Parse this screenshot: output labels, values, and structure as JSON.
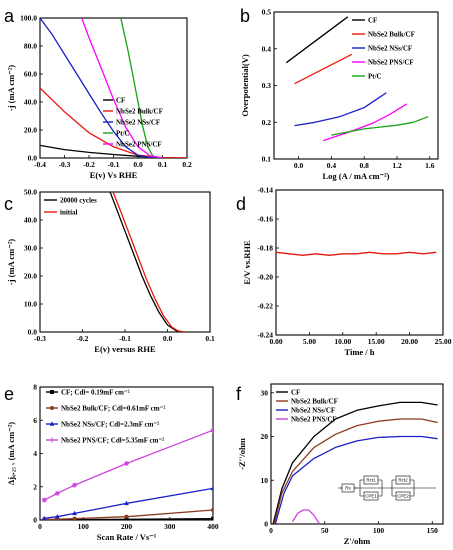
{
  "chart_data": [
    {
      "id": "a",
      "type": "line",
      "letter": "a",
      "xlabel": "E(v)  Vs RHE",
      "ylabel": "-j (mA cm⁻²)",
      "xlim": [
        -0.4,
        0.2
      ],
      "ylim": [
        100,
        0
      ],
      "y_inverted": true,
      "xticks": [
        -0.4,
        -0.3,
        -0.2,
        -0.1,
        0.0,
        0.1,
        0.2
      ],
      "yticks": [
        0,
        20,
        40,
        60,
        80,
        100
      ],
      "legend": "bottom-right",
      "series": [
        {
          "name": "CF",
          "color": "#000000",
          "x": [
            -0.4,
            -0.3,
            -0.2,
            -0.1,
            0.0,
            0.1,
            0.2
          ],
          "y": [
            9,
            6,
            4,
            2.5,
            1.2,
            0.3,
            0
          ]
        },
        {
          "name": "NbSe2 Bulk/CF",
          "color": "#e8190c",
          "x": [
            -0.4,
            -0.3,
            -0.2,
            -0.1,
            0.0,
            0.1,
            0.2
          ],
          "y": [
            50,
            33,
            18,
            8,
            2,
            0.3,
            0
          ]
        },
        {
          "name": "NbSe2 NSs/CF",
          "color": "#1a21c6",
          "x": [
            -0.4,
            -0.35,
            -0.3,
            -0.25,
            -0.2,
            -0.15,
            -0.1,
            -0.05,
            0.0,
            0.05,
            0.1
          ],
          "y": [
            100,
            88,
            74,
            60,
            46,
            32,
            19,
            8,
            2,
            0.3,
            0
          ]
        },
        {
          "name": "Pt/C",
          "color": "#19a319",
          "x": [
            -0.07,
            -0.06,
            -0.04,
            -0.02,
            0.0,
            0.02,
            0.04,
            0.06,
            0.1
          ],
          "y": [
            100,
            92,
            76,
            58,
            40,
            22,
            8,
            1.5,
            0
          ]
        },
        {
          "name": "NbSe2 PNS/CF",
          "color": "#ff00ff",
          "x": [
            -0.23,
            -0.2,
            -0.15,
            -0.1,
            -0.05,
            0.0,
            0.05,
            0.1
          ],
          "y": [
            100,
            86,
            64,
            42,
            22,
            8,
            1.5,
            0
          ]
        }
      ]
    },
    {
      "id": "b",
      "type": "line",
      "letter": "b",
      "xlabel": "Log (A / mA cm⁻²)",
      "ylabel": "Overpotential(V)",
      "xlim": [
        -0.3,
        1.7
      ],
      "ylim": [
        0.1,
        0.5
      ],
      "xticks": [
        0.0,
        0.4,
        0.8,
        1.2,
        1.6
      ],
      "yticks": [
        0.1,
        0.2,
        0.3,
        0.4,
        0.5
      ],
      "legend": "top-right",
      "series": [
        {
          "name": "CF",
          "color": "#000000",
          "x": [
            -0.15,
            0.6
          ],
          "y": [
            0.362,
            0.487
          ]
        },
        {
          "name": "NbSe2 Bulk/CF",
          "color": "#e8190c",
          "x": [
            -0.05,
            0.65
          ],
          "y": [
            0.305,
            0.385
          ]
        },
        {
          "name": "NbSe2 NSs/CF",
          "color": "#1a21c6",
          "x": [
            -0.05,
            0.2,
            0.5,
            0.8,
            1.07
          ],
          "y": [
            0.191,
            0.2,
            0.215,
            0.24,
            0.28
          ]
        },
        {
          "name": "NbSe2 PNS/CF",
          "color": "#ff00ff",
          "x": [
            0.3,
            0.6,
            0.9,
            1.1,
            1.32
          ],
          "y": [
            0.15,
            0.172,
            0.197,
            0.22,
            0.25
          ]
        },
        {
          "name": "Pt/C",
          "color": "#19a319",
          "x": [
            0.4,
            0.8,
            1.2,
            1.4,
            1.58
          ],
          "y": [
            0.165,
            0.182,
            0.192,
            0.2,
            0.215
          ]
        }
      ]
    },
    {
      "id": "c",
      "type": "line",
      "letter": "c",
      "xlabel": "E(v) versus RHE",
      "ylabel": "-j (mA cm⁻²)",
      "xlim": [
        -0.3,
        0.1
      ],
      "ylim": [
        50,
        0
      ],
      "y_inverted": true,
      "xticks": [
        -0.3,
        -0.2,
        -0.1,
        0.0,
        0.1
      ],
      "yticks": [
        0,
        10,
        20,
        30,
        40,
        50
      ],
      "legend": "top-left",
      "series": [
        {
          "name": "20000 cycles",
          "color": "#000000",
          "x": [
            -0.135,
            -0.12,
            -0.1,
            -0.08,
            -0.06,
            -0.04,
            -0.02,
            0.0,
            0.02,
            0.035
          ],
          "y": [
            50,
            44,
            36,
            28,
            20,
            13,
            7,
            2.5,
            0.5,
            0
          ]
        },
        {
          "name": "initial",
          "color": "#e8190c",
          "x": [
            -0.128,
            -0.11,
            -0.09,
            -0.07,
            -0.05,
            -0.03,
            -0.01,
            0.01,
            0.025,
            0.04
          ],
          "y": [
            50,
            43,
            35,
            27,
            19,
            12,
            6,
            1.8,
            0.4,
            0
          ]
        }
      ]
    },
    {
      "id": "d",
      "type": "line",
      "letter": "d",
      "xlabel": "Time / h",
      "ylabel": "E/V vs.RHE",
      "xlim": [
        0,
        25
      ],
      "ylim": [
        -0.14,
        -0.24
      ],
      "y_inverted": true,
      "xticks": [
        0,
        5,
        10,
        15,
        20,
        25
      ],
      "yticks": [
        -0.24,
        -0.22,
        -0.2,
        -0.18,
        -0.16,
        -0.14
      ],
      "series": [
        {
          "name": "",
          "color": "#e8190c",
          "x": [
            0,
            2,
            4,
            6,
            8,
            10,
            12,
            14,
            16,
            18,
            20,
            22,
            24
          ],
          "y": [
            -0.183,
            -0.184,
            -0.185,
            -0.184,
            -0.185,
            -0.184,
            -0.184,
            -0.183,
            -0.184,
            -0.184,
            -0.183,
            -0.184,
            -0.183
          ]
        }
      ]
    },
    {
      "id": "e",
      "type": "line",
      "letter": "e",
      "xlabel": "Scan Rate / Vs⁻¹",
      "ylabel": "Δj₀.₂₅ ᵥ (mA cm⁻²)",
      "xlim": [
        0,
        400
      ],
      "ylim": [
        0,
        8
      ],
      "xticks": [
        0,
        100,
        200,
        300,
        400
      ],
      "yticks": [
        0,
        2,
        4,
        6,
        8
      ],
      "legend": "top-left",
      "series": [
        {
          "name": "CF; Cdl= 0.19mF cm⁻²",
          "color": "#000000",
          "marker": "square",
          "x": [
            10,
            40,
            80,
            200,
            400
          ],
          "y": [
            0.01,
            0.01,
            0.02,
            0.04,
            0.08
          ]
        },
        {
          "name": "NbSe2 Bulk/CF; Cdl=0.61mF cm⁻²",
          "color": "#8b3a1f",
          "marker": "circle",
          "x": [
            10,
            40,
            80,
            200,
            400
          ],
          "y": [
            0.03,
            0.05,
            0.08,
            0.2,
            0.6
          ]
        },
        {
          "name": "NbSe2 NSs/CF; Cdl=2.3mF cm⁻²",
          "color": "#1a21c6",
          "marker": "triangle",
          "x": [
            10,
            40,
            80,
            200,
            400
          ],
          "y": [
            0.1,
            0.2,
            0.4,
            1.0,
            1.9
          ]
        },
        {
          "name": "NbSe2 PNS/CF; Cdl=5.35mF cm⁻²",
          "color": "#cc44dd",
          "marker": "star",
          "x": [
            10,
            40,
            80,
            200,
            400
          ],
          "y": [
            1.2,
            1.6,
            2.1,
            3.4,
            5.4
          ]
        }
      ]
    },
    {
      "id": "f",
      "type": "line",
      "letter": "f",
      "xlabel": "Z'/ohm",
      "ylabel": "-Z''/ohm",
      "xlim": [
        0,
        160
      ],
      "ylim": [
        0,
        32
      ],
      "xticks": [
        0,
        50,
        100,
        150
      ],
      "yticks": [
        0,
        10,
        20,
        30
      ],
      "legend": "top-left",
      "series": [
        {
          "name": "CF",
          "color": "#000000",
          "x": [
            2,
            10,
            20,
            40,
            60,
            80,
            100,
            120,
            140,
            155
          ],
          "y": [
            0,
            8,
            14,
            20,
            24,
            26,
            27,
            27.8,
            27.8,
            27.2
          ]
        },
        {
          "name": "NbSe2 Bulk/CF",
          "color": "#8b3a1f",
          "x": [
            3,
            10,
            20,
            40,
            60,
            80,
            100,
            120,
            140,
            155
          ],
          "y": [
            0,
            7,
            12,
            17.5,
            20.5,
            22.5,
            23.5,
            24,
            24,
            23.2
          ]
        },
        {
          "name": "NbSe2 NSs/CF",
          "color": "#1a21c6",
          "x": [
            4,
            12,
            20,
            40,
            60,
            80,
            100,
            120,
            140,
            155
          ],
          "y": [
            0,
            7,
            11,
            15,
            17.5,
            19,
            19.8,
            20,
            20,
            19.5
          ]
        },
        {
          "name": "NbSe2 PNS/CF",
          "color": "#cc44dd",
          "x": [
            20,
            25,
            30,
            35,
            40,
            45
          ],
          "y": [
            0.5,
            2.5,
            3.2,
            3.2,
            2,
            0
          ]
        }
      ],
      "inset": {
        "labels": [
          "Rs",
          "Rct1",
          "CPE1",
          "Rct2",
          "CPE2"
        ]
      }
    }
  ]
}
